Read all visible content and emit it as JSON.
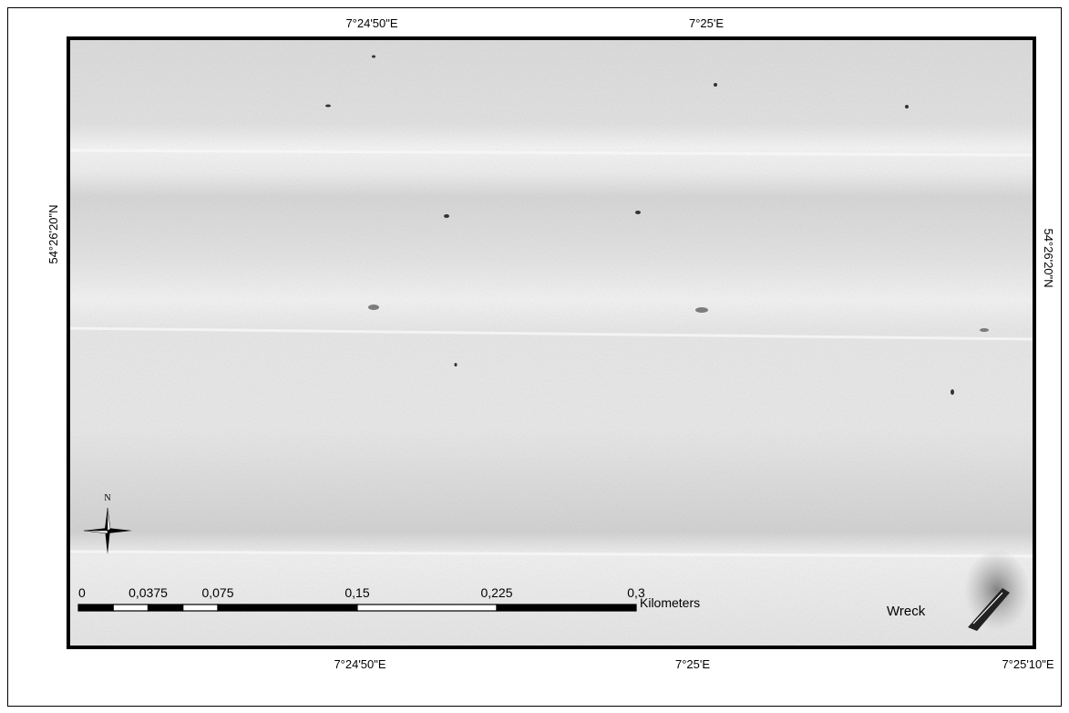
{
  "map": {
    "lon_labels_top": [
      "7°24'50\"E",
      "7°25'E"
    ],
    "lon_labels_bottom": [
      "7°24'50\"E",
      "7°25'E",
      "7°25'10\"E"
    ],
    "lat_label_left": "54°26'20\"N",
    "lat_label_right": "54°26'20\"N",
    "north_label": "N",
    "scale_bar": {
      "ticks": [
        0,
        {
          "value": 0.0375,
          "label": "0,0375"
        },
        {
          "value": 0.075,
          "label": "0,075"
        },
        {
          "value": 0.15,
          "label": "0,15"
        },
        {
          "value": 0.225,
          "label": "0,225"
        },
        {
          "value": 0.3,
          "label": "0,3"
        }
      ],
      "unit": "Kilometers"
    },
    "annotation": "Wreck"
  }
}
